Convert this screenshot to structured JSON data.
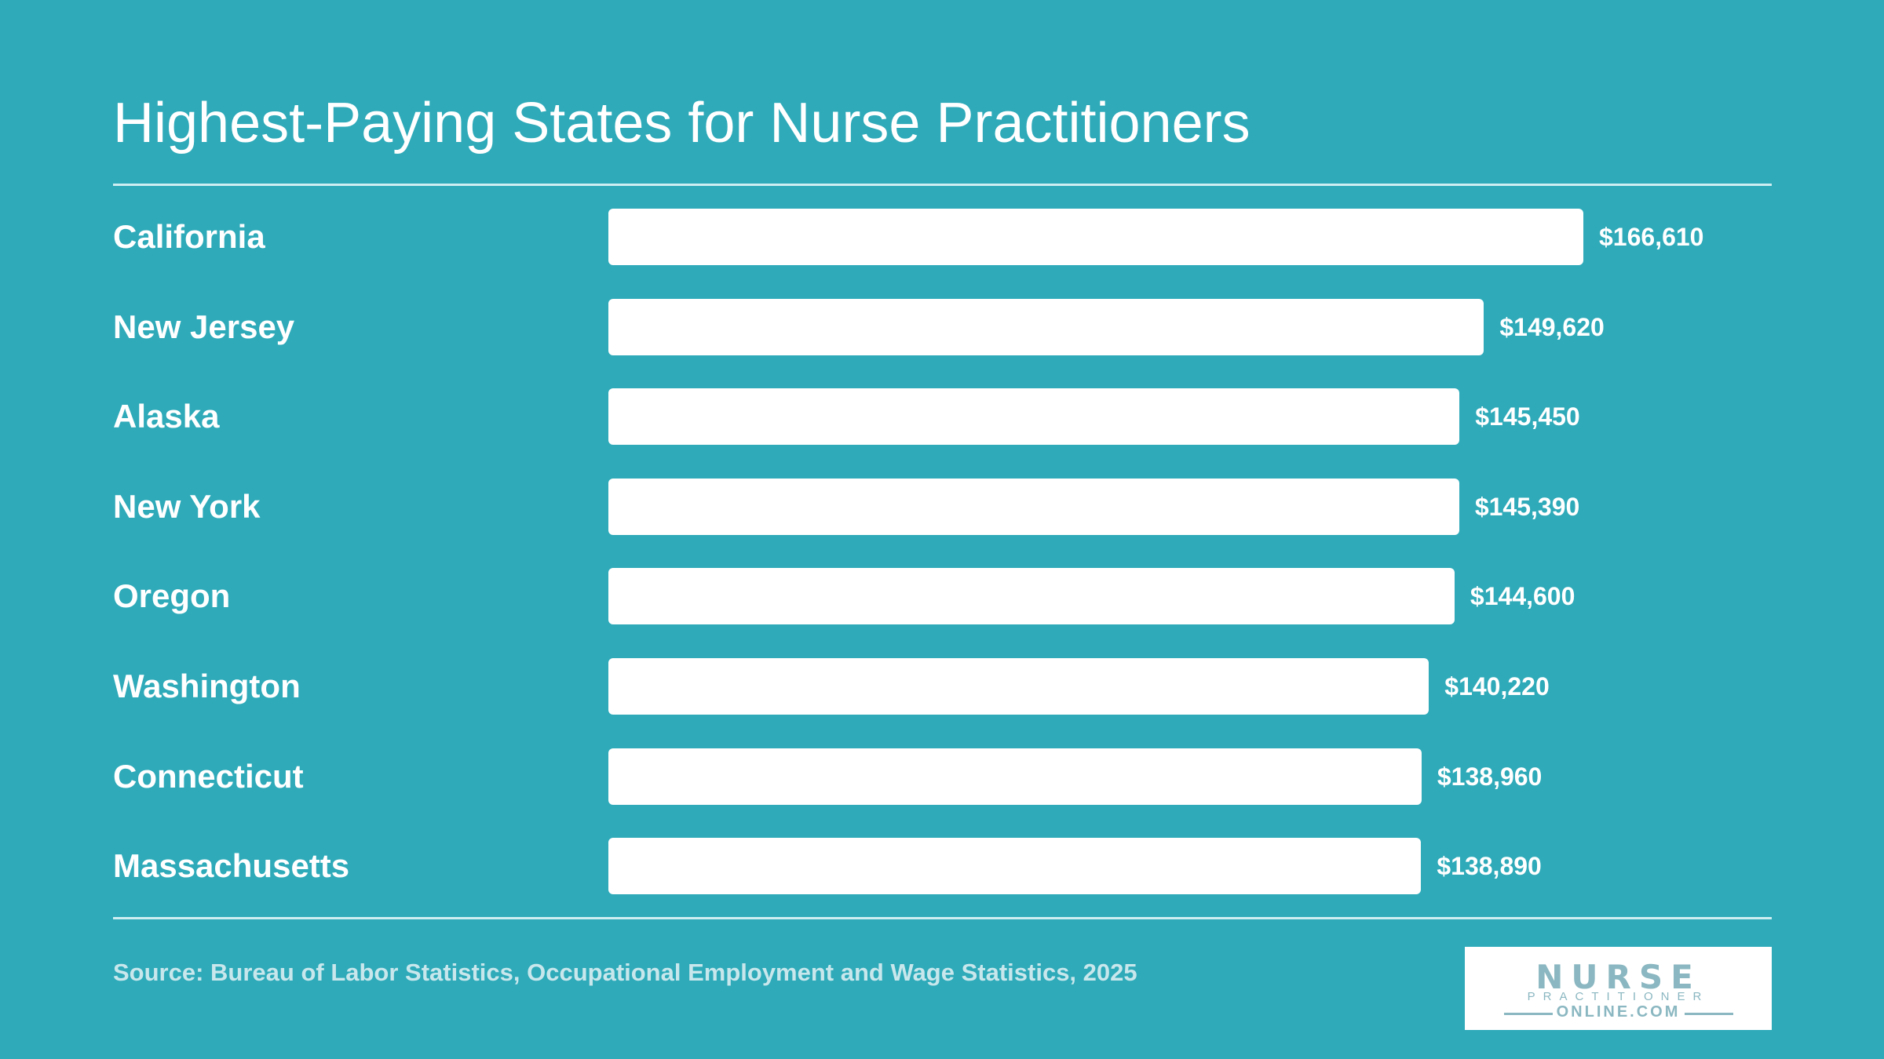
{
  "title": "Highest-Paying States for Nurse Practitioners",
  "source": "Source: Bureau of Labor Statistics, Occupational Employment and Wage Statistics, 2025",
  "logo": {
    "line1": "NURSE",
    "line2": "PRACTITIONER",
    "line3": "ONLINE.COM"
  },
  "colors": {
    "background": "#2eaab9",
    "bar": "#ffffff",
    "text": "#ffffff",
    "source_text": "#c8e7ec",
    "logo_text": "#8ab7c1"
  },
  "chart_data": {
    "type": "bar",
    "orientation": "horizontal",
    "title": "Highest-Paying States for Nurse Practitioners",
    "categories": [
      "California",
      "New Jersey",
      "Alaska",
      "New York",
      "Oregon",
      "Washington",
      "Connecticut",
      "Massachusetts"
    ],
    "values": [
      166610,
      149620,
      145450,
      145390,
      144600,
      140220,
      138960,
      138890
    ],
    "value_labels": [
      "$166,610",
      "$149,620",
      "$145,450",
      "$145,390",
      "$144,600",
      "$140,220",
      "$138,960",
      "$138,890"
    ],
    "xlabel": "",
    "ylabel": "",
    "grid": false,
    "legend": "none"
  }
}
